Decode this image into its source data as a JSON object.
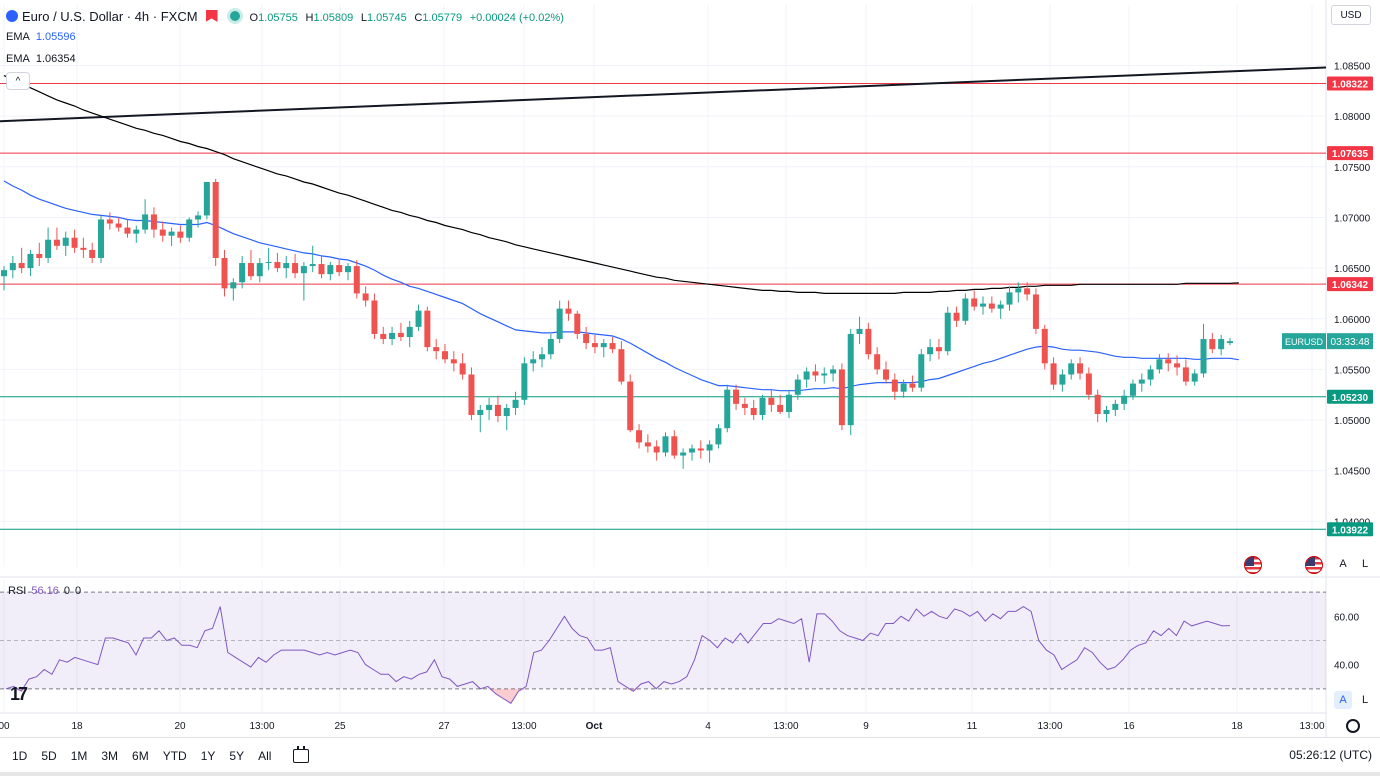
{
  "header": {
    "symbol_title": "Euro / U.S. Dollar · 4h · FXCM",
    "open_label": "O",
    "open": "1.05755",
    "high_label": "H",
    "high": "1.05809",
    "low_label": "L",
    "low": "1.05745",
    "close_label": "C",
    "close": "1.05779",
    "change": "+0.00024 (+0.02%)"
  },
  "indicators": {
    "ema1_label": "EMA",
    "ema1_value": "1.05596",
    "ema2_label": "EMA",
    "ema2_value": "1.06354",
    "rsi_label": "RSI",
    "rsi_value": "56.16",
    "rsi_p1": "0",
    "rsi_p2": "0"
  },
  "currency": "USD",
  "price_tag": {
    "symbol": "EURUSD",
    "countdown": "03:33:48"
  },
  "timeframes": [
    "1D",
    "5D",
    "1M",
    "3M",
    "6M",
    "YTD",
    "1Y",
    "5Y",
    "All"
  ],
  "clock": "05:26:12 (UTC)",
  "scale_buttons": {
    "auto": "A",
    "log": "L"
  },
  "colors": {
    "up": "#26a69a",
    "down": "#ef5350",
    "ema_fast": "#2962ff",
    "ema_slow": "#000000",
    "resistance": "#f23645",
    "support": "#089981",
    "rsi": "#7e57c2"
  },
  "chart_data": {
    "type": "candlestick",
    "title": "Euro / U.S. Dollar · 4h · FXCM",
    "ylim": [
      1.0355,
      1.0885
    ],
    "y_ticks": [
      "1.08500",
      "1.08000",
      "1.07500",
      "1.07000",
      "1.06500",
      "1.06000",
      "1.05500",
      "1.05000",
      "1.04500",
      "1.04000"
    ],
    "x_ticks": [
      "00",
      "18",
      "20",
      "13:00",
      "25",
      "27",
      "13:00",
      "Oct",
      "4",
      "13:00",
      "9",
      "11",
      "13:00",
      "16",
      "18",
      "13:00"
    ],
    "horizontal_levels": [
      {
        "value": 1.08322,
        "label": "1.08322",
        "color": "#f23645"
      },
      {
        "value": 1.07635,
        "label": "1.07635",
        "color": "#f23645"
      },
      {
        "value": 1.06342,
        "label": "1.06342",
        "color": "#f23645"
      },
      {
        "value": 1.0523,
        "label": "1.05230",
        "color": "#089981"
      },
      {
        "value": 1.03922,
        "label": "1.03922",
        "color": "#089981"
      }
    ],
    "trendline": {
      "start": 1.0795,
      "end": 1.0848
    },
    "candles": [
      [
        1.0642,
        1.0652,
        1.0628,
        1.0648
      ],
      [
        1.0648,
        1.0662,
        1.064,
        1.0655
      ],
      [
        1.0655,
        1.067,
        1.0645,
        1.065
      ],
      [
        1.065,
        1.0668,
        1.0642,
        1.0664
      ],
      [
        1.0664,
        1.0675,
        1.0652,
        1.066
      ],
      [
        1.066,
        1.069,
        1.0655,
        1.0678
      ],
      [
        1.0678,
        1.069,
        1.0668,
        1.0672
      ],
      [
        1.0672,
        1.0686,
        1.0662,
        1.068
      ],
      [
        1.068,
        1.0688,
        1.0665,
        1.067
      ],
      [
        1.067,
        1.068,
        1.066,
        1.0668
      ],
      [
        1.0668,
        1.0675,
        1.0655,
        1.066
      ],
      [
        1.066,
        1.0702,
        1.0655,
        1.0698
      ],
      [
        1.0698,
        1.0705,
        1.0688,
        1.0694
      ],
      [
        1.0694,
        1.07,
        1.0686,
        1.069
      ],
      [
        1.069,
        1.0698,
        1.068,
        1.0684
      ],
      [
        1.0684,
        1.0692,
        1.0675,
        1.0688
      ],
      [
        1.0688,
        1.0718,
        1.0684,
        1.0703
      ],
      [
        1.0703,
        1.071,
        1.068,
        1.0688
      ],
      [
        1.0688,
        1.0696,
        1.0676,
        1.0682
      ],
      [
        1.0682,
        1.069,
        1.0672,
        1.0686
      ],
      [
        1.0686,
        1.0692,
        1.0675,
        1.068
      ],
      [
        1.068,
        1.07,
        1.0676,
        1.0698
      ],
      [
        1.0698,
        1.0706,
        1.069,
        1.0702
      ],
      [
        1.0702,
        1.0735,
        1.0698,
        1.0735
      ],
      [
        1.0735,
        1.0738,
        1.0652,
        1.066
      ],
      [
        1.066,
        1.0668,
        1.0622,
        1.063
      ],
      [
        1.063,
        1.064,
        1.0618,
        1.0636
      ],
      [
        1.0636,
        1.0662,
        1.063,
        1.0655
      ],
      [
        1.0655,
        1.0668,
        1.0638,
        1.0642
      ],
      [
        1.0642,
        1.066,
        1.0636,
        1.0655
      ],
      [
        1.0655,
        1.067,
        1.0648,
        1.0656
      ],
      [
        1.0656,
        1.0665,
        1.0646,
        1.065
      ],
      [
        1.065,
        1.0662,
        1.064,
        1.0655
      ],
      [
        1.0655,
        1.0664,
        1.064,
        1.0645
      ],
      [
        1.0645,
        1.0656,
        1.0618,
        1.0652
      ],
      [
        1.0652,
        1.0672,
        1.0646,
        1.0654
      ],
      [
        1.0654,
        1.0662,
        1.064,
        1.0644
      ],
      [
        1.0644,
        1.0656,
        1.0638,
        1.0653
      ],
      [
        1.0653,
        1.0658,
        1.0642,
        1.0646
      ],
      [
        1.0646,
        1.0655,
        1.0638,
        1.0652
      ],
      [
        1.0652,
        1.0658,
        1.062,
        1.0625
      ],
      [
        1.0625,
        1.0632,
        1.0612,
        1.0618
      ],
      [
        1.0618,
        1.0625,
        1.058,
        1.0585
      ],
      [
        1.0585,
        1.0592,
        1.0575,
        1.058
      ],
      [
        1.058,
        1.0592,
        1.0574,
        1.0586
      ],
      [
        1.0586,
        1.0596,
        1.0578,
        1.0582
      ],
      [
        1.0582,
        1.0598,
        1.0572,
        1.0592
      ],
      [
        1.0592,
        1.0614,
        1.0588,
        1.0608
      ],
      [
        1.0608,
        1.0612,
        1.0568,
        1.0572
      ],
      [
        1.0572,
        1.058,
        1.056,
        1.0568
      ],
      [
        1.0568,
        1.0575,
        1.0556,
        1.056
      ],
      [
        1.056,
        1.0568,
        1.0548,
        1.0556
      ],
      [
        1.0556,
        1.0566,
        1.054,
        1.0545
      ],
      [
        1.0545,
        1.0552,
        1.05,
        1.0505
      ],
      [
        1.0505,
        1.0515,
        1.0488,
        1.051
      ],
      [
        1.051,
        1.0522,
        1.05,
        1.0515
      ],
      [
        1.0515,
        1.0524,
        1.0498,
        1.0504
      ],
      [
        1.0504,
        1.0516,
        1.049,
        1.0512
      ],
      [
        1.0512,
        1.0528,
        1.0505,
        1.052
      ],
      [
        1.052,
        1.0562,
        1.0515,
        1.0556
      ],
      [
        1.0556,
        1.0568,
        1.0548,
        1.056
      ],
      [
        1.056,
        1.0572,
        1.0552,
        1.0565
      ],
      [
        1.0565,
        1.0585,
        1.056,
        1.058
      ],
      [
        1.058,
        1.0618,
        1.0576,
        1.061
      ],
      [
        1.061,
        1.0618,
        1.0598,
        1.0605
      ],
      [
        1.0605,
        1.0608,
        1.058,
        1.0585
      ],
      [
        1.0585,
        1.0592,
        1.057,
        1.0576
      ],
      [
        1.0576,
        1.0584,
        1.0566,
        1.0572
      ],
      [
        1.0572,
        1.058,
        1.0562,
        1.0576
      ],
      [
        1.0576,
        1.0582,
        1.0566,
        1.057
      ],
      [
        1.057,
        1.0578,
        1.0535,
        1.0538
      ],
      [
        1.0538,
        1.0545,
        1.0488,
        1.049
      ],
      [
        1.049,
        1.0496,
        1.0472,
        1.0478
      ],
      [
        1.0478,
        1.0486,
        1.0468,
        1.0474
      ],
      [
        1.0474,
        1.048,
        1.046,
        1.0468
      ],
      [
        1.0468,
        1.0488,
        1.0464,
        1.0484
      ],
      [
        1.0484,
        1.049,
        1.0462,
        1.0465
      ],
      [
        1.0465,
        1.0472,
        1.0452,
        1.0468
      ],
      [
        1.0468,
        1.0476,
        1.046,
        1.0472
      ],
      [
        1.0472,
        1.048,
        1.0462,
        1.047
      ],
      [
        1.047,
        1.048,
        1.0458,
        1.0476
      ],
      [
        1.0476,
        1.0496,
        1.0472,
        1.0492
      ],
      [
        1.0492,
        1.0535,
        1.0488,
        1.053
      ],
      [
        1.053,
        1.0535,
        1.051,
        1.0516
      ],
      [
        1.0516,
        1.0522,
        1.0505,
        1.0512
      ],
      [
        1.0512,
        1.052,
        1.05,
        1.0505
      ],
      [
        1.0505,
        1.0525,
        1.05,
        1.0522
      ],
      [
        1.0522,
        1.053,
        1.0508,
        1.0515
      ],
      [
        1.0515,
        1.0525,
        1.0506,
        1.0508
      ],
      [
        1.0508,
        1.053,
        1.0502,
        1.0525
      ],
      [
        1.0525,
        1.0545,
        1.052,
        1.054
      ],
      [
        1.054,
        1.0552,
        1.0532,
        1.0548
      ],
      [
        1.0548,
        1.0555,
        1.0538,
        1.0544
      ],
      [
        1.0544,
        1.0552,
        1.0536,
        1.0546
      ],
      [
        1.0546,
        1.0554,
        1.0538,
        1.055
      ],
      [
        1.055,
        1.0556,
        1.049,
        1.0495
      ],
      [
        1.0495,
        1.059,
        1.0485,
        1.0585
      ],
      [
        1.0585,
        1.0602,
        1.0575,
        1.059
      ],
      [
        1.059,
        1.0596,
        1.056,
        1.0565
      ],
      [
        1.0565,
        1.0572,
        1.0545,
        1.055
      ],
      [
        1.055,
        1.0558,
        1.0536,
        1.054
      ],
      [
        1.054,
        1.0546,
        1.052,
        1.0528
      ],
      [
        1.0528,
        1.054,
        1.0522,
        1.0536
      ],
      [
        1.0536,
        1.0544,
        1.0528,
        1.0532
      ],
      [
        1.0532,
        1.057,
        1.0528,
        1.0565
      ],
      [
        1.0565,
        1.058,
        1.0558,
        1.0572
      ],
      [
        1.0572,
        1.058,
        1.056,
        1.0568
      ],
      [
        1.0568,
        1.0612,
        1.0564,
        1.0606
      ],
      [
        1.0606,
        1.0612,
        1.0592,
        1.0598
      ],
      [
        1.0598,
        1.0625,
        1.0594,
        1.062
      ],
      [
        1.062,
        1.0628,
        1.0608,
        1.0612
      ],
      [
        1.0612,
        1.0622,
        1.0604,
        1.0615
      ],
      [
        1.0615,
        1.0622,
        1.0606,
        1.061
      ],
      [
        1.061,
        1.0618,
        1.06,
        1.0614
      ],
      [
        1.0614,
        1.0632,
        1.0608,
        1.0626
      ],
      [
        1.0626,
        1.0636,
        1.0616,
        1.063
      ],
      [
        1.063,
        1.0636,
        1.0618,
        1.0624
      ],
      [
        1.0624,
        1.063,
        1.0585,
        1.059
      ],
      [
        1.059,
        1.0594,
        1.055,
        1.0556
      ],
      [
        1.0556,
        1.0562,
        1.053,
        1.0535
      ],
      [
        1.0535,
        1.055,
        1.0528,
        1.0545
      ],
      [
        1.0545,
        1.056,
        1.054,
        1.0556
      ],
      [
        1.0556,
        1.0562,
        1.054,
        1.0546
      ],
      [
        1.0546,
        1.0552,
        1.052,
        1.0525
      ],
      [
        1.0525,
        1.053,
        1.0498,
        1.0506
      ],
      [
        1.0506,
        1.0514,
        1.0498,
        1.051
      ],
      [
        1.051,
        1.052,
        1.0504,
        1.0516
      ],
      [
        1.0516,
        1.053,
        1.051,
        1.0524
      ],
      [
        1.0524,
        1.054,
        1.052,
        1.0536
      ],
      [
        1.0536,
        1.0546,
        1.0528,
        1.054
      ],
      [
        1.054,
        1.0554,
        1.0534,
        1.055
      ],
      [
        1.055,
        1.0565,
        1.0546,
        1.056
      ],
      [
        1.056,
        1.0566,
        1.0548,
        1.0556
      ],
      [
        1.0556,
        1.0564,
        1.0544,
        1.0552
      ],
      [
        1.0552,
        1.056,
        1.0534,
        1.0538
      ],
      [
        1.0538,
        1.055,
        1.0534,
        1.0546
      ],
      [
        1.0546,
        1.0595,
        1.0542,
        1.058
      ],
      [
        1.058,
        1.0586,
        1.0566,
        1.057
      ],
      [
        1.057,
        1.0584,
        1.0564,
        1.058
      ],
      [
        1.0576,
        1.0581,
        1.0574,
        1.05779
      ]
    ],
    "ema_fast": [
      1.0736,
      1.0731,
      1.0727,
      1.0722,
      1.0718,
      1.0715,
      1.0712,
      1.0709,
      1.0707,
      1.0705,
      1.0703,
      1.0702,
      1.0701,
      1.07,
      1.0698,
      1.0697,
      1.0697,
      1.0696,
      1.0695,
      1.0694,
      1.0693,
      1.0693,
      1.0693,
      1.0695,
      1.0692,
      1.0688,
      1.0684,
      1.0681,
      1.0678,
      1.0675,
      1.0673,
      1.0671,
      1.0669,
      1.0667,
      1.0665,
      1.0664,
      1.0662,
      1.0661,
      1.0659,
      1.0658,
      1.0655,
      1.0652,
      1.0648,
      1.0643,
      1.0639,
      1.0636,
      1.0632,
      1.063,
      1.0627,
      1.0624,
      1.0621,
      1.0618,
      1.0615,
      1.061,
      1.0605,
      1.0601,
      1.0597,
      1.0593,
      1.0589,
      1.0588,
      1.0587,
      1.0586,
      1.0586,
      1.0587,
      1.0587,
      1.0587,
      1.0586,
      1.0585,
      1.0584,
      1.0583,
      1.058,
      1.0576,
      1.0571,
      1.0566,
      1.0561,
      1.0557,
      1.0552,
      1.0548,
      1.0544,
      1.054,
      1.0537,
      1.0534,
      1.0534,
      1.0533,
      1.0532,
      1.0531,
      1.053,
      1.053,
      1.0529,
      1.0529,
      1.0529,
      1.053,
      1.0531,
      1.0531,
      1.0532,
      1.0531,
      1.0533,
      1.0535,
      1.0536,
      1.0537,
      1.0537,
      1.0537,
      1.0537,
      1.0537,
      1.0538,
      1.054,
      1.0541,
      1.0544,
      1.0547,
      1.055,
      1.0553,
      1.0556,
      1.0558,
      1.0561,
      1.0564,
      1.0567,
      1.057,
      1.0572,
      1.0573,
      1.0572,
      1.057,
      1.0569,
      1.0569,
      1.0568,
      1.0567,
      1.0565,
      1.0563,
      1.0562,
      1.0562,
      1.0561,
      1.0561,
      1.0561,
      1.0561,
      1.0561,
      1.0561,
      1.056,
      1.056,
      1.0561,
      1.0561,
      1.0561,
      1.05596
    ],
    "ema_slow": [
      1.084,
      1.0836,
      1.0832,
      1.0828,
      1.0824,
      1.082,
      1.0816,
      1.0813,
      1.081,
      1.0806,
      1.0803,
      1.08,
      1.0797,
      1.0794,
      1.0791,
      1.0788,
      1.0786,
      1.0783,
      1.0781,
      1.0778,
      1.0775,
      1.0773,
      1.077,
      1.0768,
      1.0765,
      1.0762,
      1.0758,
      1.0755,
      1.0752,
      1.0749,
      1.0746,
      1.0743,
      1.0741,
      1.0738,
      1.0735,
      1.0733,
      1.073,
      1.0727,
      1.0724,
      1.0722,
      1.0719,
      1.0716,
      1.0713,
      1.071,
      1.0707,
      1.0705,
      1.0702,
      1.07,
      1.0697,
      1.0695,
      1.0692,
      1.069,
      1.0688,
      1.0685,
      1.0683,
      1.068,
      1.0678,
      1.0676,
      1.0673,
      1.0671,
      1.0669,
      1.0667,
      1.0665,
      1.0663,
      1.0661,
      1.0659,
      1.0657,
      1.0655,
      1.0653,
      1.0651,
      1.0649,
      1.0647,
      1.0645,
      1.0643,
      1.0641,
      1.064,
      1.0638,
      1.0637,
      1.0636,
      1.0635,
      1.0634,
      1.0633,
      1.0632,
      1.0631,
      1.063,
      1.0629,
      1.0628,
      1.0628,
      1.0627,
      1.0627,
      1.0626,
      1.0626,
      1.0626,
      1.0625,
      1.0625,
      1.0625,
      1.0625,
      1.0625,
      1.0625,
      1.0625,
      1.0625,
      1.0625,
      1.0626,
      1.0626,
      1.0626,
      1.0626,
      1.0627,
      1.0627,
      1.0628,
      1.0628,
      1.0629,
      1.0629,
      1.063,
      1.063,
      1.0631,
      1.0631,
      1.0632,
      1.0632,
      1.0633,
      1.0633,
      1.0633,
      1.0633,
      1.0634,
      1.0634,
      1.0634,
      1.0634,
      1.0634,
      1.0634,
      1.0634,
      1.0634,
      1.0634,
      1.0634,
      1.0634,
      1.0634,
      1.0635,
      1.0635,
      1.0635,
      1.0635,
      1.0635,
      1.0635,
      1.06354
    ],
    "rsi": {
      "ylim": [
        20,
        75
      ],
      "y_ticks": [
        "60.00",
        "40.00"
      ],
      "band": [
        30,
        70
      ],
      "values": [
        30,
        31,
        29,
        34,
        35,
        38,
        36,
        42,
        41,
        43,
        42,
        41,
        40,
        51,
        51,
        50,
        49,
        44,
        51,
        51,
        54,
        50,
        51,
        48,
        48,
        47,
        54,
        55,
        64,
        45,
        43,
        41,
        39,
        43,
        41,
        44,
        46,
        46,
        46,
        46,
        45,
        44,
        45,
        44,
        45,
        46,
        45,
        40,
        38,
        36,
        36,
        33,
        35,
        34,
        36,
        37,
        42,
        35,
        34,
        31,
        32,
        33,
        30,
        31,
        28,
        26,
        24,
        29,
        31,
        45,
        46,
        50,
        55,
        60,
        55,
        52,
        51,
        46,
        46,
        47,
        33,
        31,
        29,
        32,
        33,
        30,
        33,
        32,
        33,
        35,
        42,
        52,
        50,
        47,
        51,
        49,
        53,
        49,
        53,
        57,
        57,
        59,
        58,
        57,
        59,
        41,
        61,
        61,
        58,
        54,
        52,
        51,
        50,
        53,
        52,
        57,
        57,
        60,
        58,
        63,
        60,
        62,
        60,
        59,
        63,
        62,
        60,
        62,
        58,
        61,
        59,
        62,
        62,
        64,
        62,
        50,
        46,
        44,
        38,
        40,
        42,
        47,
        45,
        41,
        38,
        39,
        42,
        46,
        48,
        49,
        54,
        52,
        55,
        52,
        58,
        56,
        57,
        58,
        57,
        56,
        56.16
      ]
    }
  }
}
